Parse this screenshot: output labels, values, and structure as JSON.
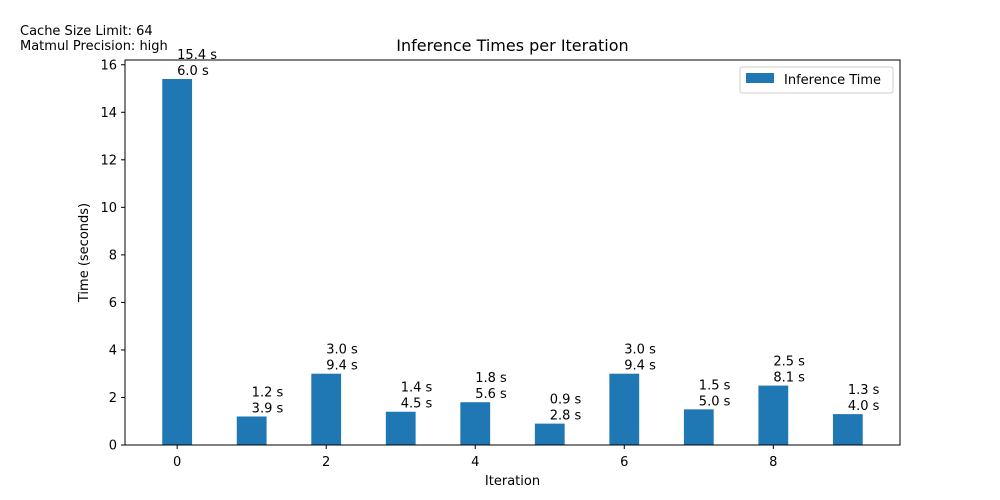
{
  "notes": {
    "cache_size": "Cache Size Limit: 64",
    "matmul_precision": "Matmul Precision: high"
  },
  "chart_data": {
    "type": "bar",
    "title": "Inference Times per Iteration",
    "xlabel": "Iteration",
    "ylabel": "Time (seconds)",
    "x": [
      0,
      1,
      2,
      3,
      4,
      5,
      6,
      7,
      8,
      9
    ],
    "series": [
      {
        "name": "Inference Time",
        "color": "#1f77b4",
        "values": [
          15.4,
          1.2,
          3.0,
          1.4,
          1.8,
          0.9,
          3.0,
          1.5,
          2.5,
          1.3
        ]
      }
    ],
    "bar_labels": [
      [
        "15.4 s",
        "6.0 s"
      ],
      [
        "1.2 s",
        "3.9 s"
      ],
      [
        "3.0 s",
        "9.4 s"
      ],
      [
        "1.4 s",
        "4.5 s"
      ],
      [
        "1.8 s",
        "5.6 s"
      ],
      [
        "0.9 s",
        "2.8 s"
      ],
      [
        "3.0 s",
        "9.4 s"
      ],
      [
        "1.5 s",
        "5.0 s"
      ],
      [
        "2.5 s",
        "8.1 s"
      ],
      [
        "1.3 s",
        "4.0 s"
      ]
    ],
    "xticks": [
      0,
      2,
      4,
      6,
      8
    ],
    "yticks": [
      0,
      2,
      4,
      6,
      8,
      10,
      12,
      14,
      16
    ],
    "xlim": [
      -0.7,
      9.7
    ],
    "ylim": [
      0,
      16.2
    ],
    "grid": false,
    "legend": {
      "position": "upper-right",
      "entries": [
        "Inference Time"
      ]
    }
  }
}
